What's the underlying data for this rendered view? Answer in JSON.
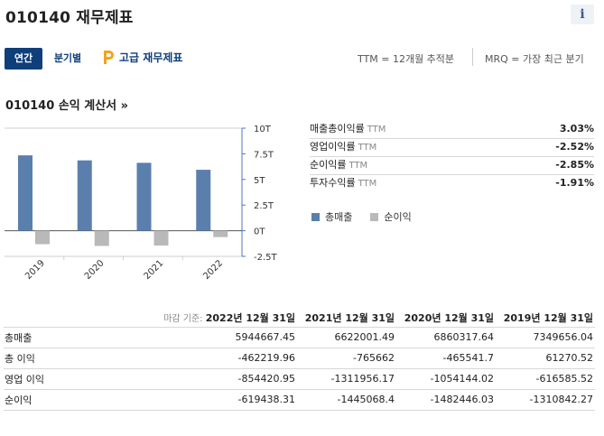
{
  "header": {
    "title": "010140 재무제표",
    "info_label": "i"
  },
  "tabs": [
    {
      "label": "연간",
      "active": true
    },
    {
      "label": "분기별",
      "active": false
    }
  ],
  "premium_label": "고급 재무제표",
  "ttm_note": "TTM = 12개월 추적분",
  "mrq_note": "MRQ = 가장 최근 분기",
  "section_title": "010140 손익 계산서 »",
  "colors": {
    "revenue": "#5b7fad",
    "net_income": "#b9b9b9",
    "accent": "#0e3f7a",
    "premium": "#f5a21b"
  },
  "chart_data": {
    "type": "bar",
    "categories": [
      "2019",
      "2020",
      "2021",
      "2022"
    ],
    "series": [
      {
        "name": "총매출",
        "values": [
          7349656.04,
          6860317.64,
          6622001.49,
          5944667.45
        ]
      },
      {
        "name": "순이익",
        "values": [
          -1310842.27,
          -1482446.03,
          -1445068.4,
          -619438.31
        ]
      }
    ],
    "y_ticks": [
      {
        "value": 10000000,
        "label": "10T"
      },
      {
        "value": 7500000,
        "label": "7.5T"
      },
      {
        "value": 5000000,
        "label": "5T"
      },
      {
        "value": 2500000,
        "label": "2.5T"
      },
      {
        "value": 0,
        "label": "0T"
      },
      {
        "value": -2500000,
        "label": "-2.5T"
      }
    ],
    "ylim": [
      -2500000,
      10000000
    ],
    "grid": false,
    "legend": "bottom"
  },
  "metrics": [
    {
      "label": "매출총이익률",
      "ttm": "TTM",
      "value": "3.03%"
    },
    {
      "label": "영업이익률",
      "ttm": "TTM",
      "value": "-2.52%"
    },
    {
      "label": "순이익률",
      "ttm": "TTM",
      "value": "-2.85%"
    },
    {
      "label": "투자수익률",
      "ttm": "TTM",
      "value": "-1.91%"
    }
  ],
  "legend": [
    {
      "label": "총매출"
    },
    {
      "label": "순이익"
    }
  ],
  "table": {
    "date_label": "마감 기준:",
    "columns": [
      "2022년 12월 31일",
      "2021년 12월 31일",
      "2020년 12월 31일",
      "2019년 12월 31일"
    ],
    "rows": [
      {
        "label": "총매출",
        "values": [
          "5944667.45",
          "6622001.49",
          "6860317.64",
          "7349656.04"
        ]
      },
      {
        "label": "총 이익",
        "values": [
          "-462219.96",
          "-765662",
          "-465541.7",
          "61270.52"
        ]
      },
      {
        "label": "영업 이익",
        "values": [
          "-854420.95",
          "-1311956.17",
          "-1054144.02",
          "-616585.52"
        ]
      },
      {
        "label": "순이익",
        "values": [
          "-619438.31",
          "-1445068.4",
          "-1482446.03",
          "-1310842.27"
        ]
      }
    ]
  }
}
